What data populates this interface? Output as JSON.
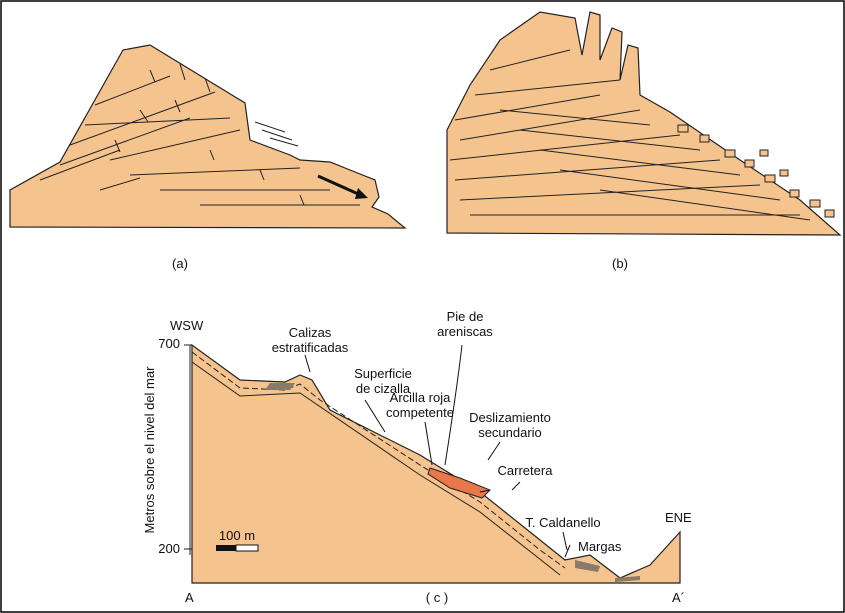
{
  "panels": {
    "a": {
      "label": "(a)"
    },
    "b": {
      "label": "(b)"
    },
    "c": {
      "label": "( c )"
    }
  },
  "section": {
    "left_end": "WSW",
    "right_end": "ENE",
    "left_point": "A",
    "right_point": "A´",
    "axis_title": "Metros sobre el nivel del mar",
    "axis_ticks": [
      "700",
      "200"
    ],
    "scale_bar": "100 m",
    "labels": {
      "calizas": [
        "Calizas",
        "estratificadas"
      ],
      "superficie": [
        "Superficie",
        "de cizalla"
      ],
      "pie": [
        "Pie de",
        "areniscas"
      ],
      "arcilla": [
        "Arcilla roja",
        "competente"
      ],
      "deslizamiento": [
        "Deslizamiento",
        "secundario"
      ],
      "carretera": [
        "Carretera"
      ],
      "caldanello": [
        "T. Caldanello"
      ],
      "margas": [
        "Margas"
      ]
    }
  }
}
